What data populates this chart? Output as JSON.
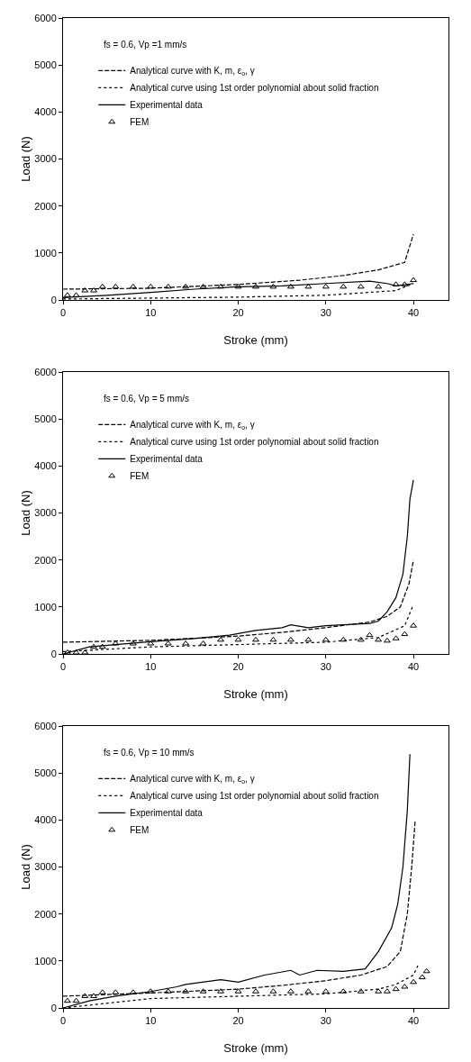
{
  "chart_data": [
    {
      "type": "line",
      "xlabel": "Stroke (mm)",
      "ylabel": "Load (N)",
      "xlim": [
        0,
        44
      ],
      "xticks": [
        0,
        10,
        20,
        30,
        40
      ],
      "ylim": [
        0,
        6000
      ],
      "yticks": [
        0,
        1000,
        2000,
        3000,
        4000,
        5000,
        6000
      ],
      "grid": false,
      "legend": "top left",
      "annotations": [
        "fs = 0.6, Vp =1 mm/s"
      ],
      "series": [
        {
          "name": "Analytical curve with K, m, ε$_{o}$, γ",
          "line_style": "dashed",
          "color": "#000000",
          "x": [
            0,
            10,
            20,
            27,
            32,
            36,
            39,
            40
          ],
          "values": [
            230,
            250,
            330,
            420,
            520,
            640,
            800,
            1400
          ]
        },
        {
          "name": "Analytical curve using 1st order polynomial about solid fraction",
          "line_style": "dotted",
          "color": "#000000",
          "x": [
            0,
            10,
            20,
            30,
            38,
            40
          ],
          "values": [
            20,
            40,
            60,
            100,
            200,
            350
          ]
        },
        {
          "name": "Experimental data",
          "line_style": "solid",
          "color": "#000000",
          "x": [
            0,
            5,
            10,
            15,
            20,
            25,
            30,
            35,
            37,
            38,
            40
          ],
          "values": [
            50,
            100,
            160,
            230,
            280,
            300,
            350,
            400,
            350,
            300,
            350
          ]
        },
        {
          "name": "FEM",
          "type": "scatter",
          "marker": "triangle",
          "color": "#000000",
          "x": [
            0.5,
            1.5,
            2.5,
            3.5,
            4.5,
            6,
            8,
            10,
            12,
            14,
            16,
            18,
            20,
            22,
            24,
            26,
            28,
            30,
            32,
            34,
            36,
            38,
            39,
            40
          ],
          "values": [
            100,
            100,
            200,
            200,
            280,
            280,
            280,
            280,
            280,
            280,
            280,
            280,
            280,
            280,
            280,
            280,
            280,
            280,
            280,
            280,
            280,
            330,
            330,
            420
          ]
        }
      ]
    },
    {
      "type": "line",
      "xlabel": "Stroke (mm)",
      "ylabel": "Load (N)",
      "xlim": [
        0,
        44
      ],
      "xticks": [
        0,
        10,
        20,
        30,
        40
      ],
      "ylim": [
        0,
        6000
      ],
      "yticks": [
        0,
        1000,
        2000,
        3000,
        4000,
        5000,
        6000
      ],
      "grid": false,
      "legend": "top left",
      "annotations": [
        "fs = 0.6, Vp = 5 mm/s"
      ],
      "series": [
        {
          "name": "Analytical curve with K, m, ε$_{o}$, γ",
          "line_style": "dashed",
          "color": "#000000",
          "x": [
            0,
            10,
            20,
            25,
            30,
            35,
            37,
            38.5,
            39.5,
            40
          ],
          "values": [
            250,
            290,
            380,
            460,
            560,
            680,
            800,
            1000,
            1500,
            2000
          ]
        },
        {
          "name": "Analytical curve using 1st order polynomial about solid fraction",
          "line_style": "dotted",
          "color": "#000000",
          "x": [
            0,
            10,
            20,
            30,
            36,
            39,
            40
          ],
          "values": [
            50,
            150,
            200,
            250,
            350,
            600,
            1050
          ]
        },
        {
          "name": "Experimental data",
          "line_style": "solid",
          "color": "#000000",
          "x": [
            0,
            3,
            6,
            10,
            15,
            19,
            22,
            25,
            26,
            28,
            30,
            35,
            36,
            37,
            38,
            38.8,
            39.3,
            39.6,
            40
          ],
          "values": [
            0,
            150,
            200,
            260,
            330,
            400,
            500,
            560,
            620,
            560,
            600,
            650,
            700,
            900,
            1200,
            1700,
            2500,
            3300,
            3700
          ]
        },
        {
          "name": "FEM",
          "type": "scatter",
          "marker": "triangle",
          "color": "#000000",
          "x": [
            0.5,
            1.5,
            2.5,
            3.5,
            4.5,
            6,
            8,
            10,
            12,
            14,
            16,
            18,
            20,
            22,
            24,
            26,
            28,
            30,
            32,
            34,
            35,
            36,
            37,
            38,
            39,
            40
          ],
          "values": [
            30,
            30,
            30,
            150,
            150,
            220,
            220,
            220,
            220,
            220,
            220,
            300,
            300,
            300,
            300,
            300,
            300,
            300,
            300,
            300,
            400,
            300,
            280,
            330,
            420,
            600
          ]
        }
      ]
    },
    {
      "type": "line",
      "xlabel": "Stroke (mm)",
      "ylabel": "Load (N)",
      "xlim": [
        0,
        44
      ],
      "xticks": [
        0,
        10,
        20,
        30,
        40
      ],
      "ylim": [
        0,
        6000
      ],
      "yticks": [
        0,
        1000,
        2000,
        3000,
        4000,
        5000,
        6000
      ],
      "grid": false,
      "legend": "top left",
      "annotations": [
        "fs = 0.6, Vp = 10 mm/s"
      ],
      "series": [
        {
          "name": "Analytical curve with K, m, ε$_{o}$, γ",
          "line_style": "dashed",
          "color": "#000000",
          "x": [
            0,
            10,
            20,
            25,
            30,
            34,
            37,
            38.5,
            39.3,
            39.8,
            40.2
          ],
          "values": [
            250,
            320,
            400,
            480,
            580,
            700,
            880,
            1200,
            2000,
            3000,
            4000
          ]
        },
        {
          "name": "Analytical curve using 1st order polynomial about solid fraction",
          "line_style": "dotted",
          "color": "#000000",
          "x": [
            0,
            10,
            20,
            30,
            36,
            38,
            40,
            40.5
          ],
          "values": [
            0,
            200,
            250,
            300,
            400,
            500,
            700,
            900
          ]
        },
        {
          "name": "Experimental data",
          "line_style": "solid",
          "color": "#000000",
          "x": [
            0,
            3,
            6,
            10,
            13,
            14,
            18,
            20,
            23,
            26,
            27,
            29,
            32,
            34.5,
            36,
            37.5,
            38.2,
            38.8,
            39.3,
            39.6
          ],
          "values": [
            0,
            150,
            250,
            350,
            450,
            500,
            600,
            550,
            700,
            800,
            700,
            800,
            780,
            830,
            1200,
            1700,
            2200,
            3000,
            4200,
            5400
          ]
        },
        {
          "name": "FEM",
          "type": "scatter",
          "marker": "triangle",
          "color": "#000000",
          "x": [
            0.5,
            1.5,
            2.5,
            3.5,
            4.5,
            6,
            8,
            10,
            12,
            14,
            16,
            18,
            20,
            22,
            24,
            26,
            28,
            30,
            32,
            34,
            36,
            37,
            38,
            39,
            40,
            41,
            41.5
          ],
          "values": [
            150,
            150,
            250,
            250,
            330,
            330,
            330,
            350,
            350,
            350,
            350,
            350,
            350,
            350,
            350,
            350,
            350,
            350,
            350,
            350,
            350,
            350,
            400,
            450,
            550,
            650,
            780
          ]
        }
      ]
    }
  ]
}
